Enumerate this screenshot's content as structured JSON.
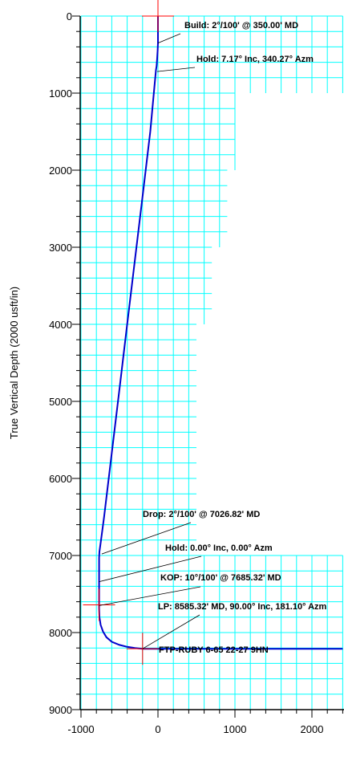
{
  "chart_data": {
    "type": "line",
    "title": "",
    "xlabel": "",
    "ylabel": "True Vertical Depth (2000 usft/in)",
    "xlim": [
      -1000,
      2400
    ],
    "ylim": [
      0,
      9000
    ],
    "y_inverted": true,
    "grid": true,
    "grid_color": "#00ffff",
    "line_color": "#0000cc",
    "marker_color": "#ff0000",
    "x_ticks": [
      -1000,
      0,
      1000,
      2000
    ],
    "x_tick_labels": [
      "-1000",
      "0",
      "1000",
      "2000"
    ],
    "y_ticks": [
      0,
      1000,
      2000,
      3000,
      4000,
      5000,
      6000,
      7000,
      8000,
      9000
    ],
    "y_tick_labels": [
      "0",
      "1000",
      "2000",
      "3000",
      "4000",
      "5000",
      "6000",
      "7000",
      "8000",
      "9000"
    ],
    "series": [
      {
        "x": [
          0,
          0,
          -4,
          -10,
          -18,
          -26,
          -100,
          -200,
          -300,
          -400,
          -500,
          -600,
          -700,
          -740,
          -760,
          -765,
          -765,
          -760,
          -745,
          -715,
          -670,
          -600,
          -500,
          -400,
          -300,
          -200,
          2400
        ],
        "y": [
          0,
          350,
          450,
          550,
          650,
          700,
          1500,
          2340,
          3170,
          4000,
          4840,
          5670,
          6500,
          6800,
          6950,
          7030,
          7685,
          7800,
          7900,
          7985,
          8060,
          8120,
          8160,
          8185,
          8200,
          8210,
          8210
        ]
      }
    ],
    "markers": [
      {
        "label": "surface-marker",
        "x": 0,
        "y": 0
      },
      {
        "label": "kop-marker",
        "x": -765,
        "y": 7640
      },
      {
        "label": "ftp-marker",
        "x": -200,
        "y": 8210
      }
    ],
    "annotations": [
      {
        "text": "Build: 2°/100' @ 350.00' MD",
        "x": 0,
        "y": 350
      },
      {
        "text": "Hold: 7.17° Inc, 340.27° Azm",
        "x": -10,
        "y": 720
      },
      {
        "text": "Drop: 2°/100' @ 7026.82' MD",
        "x": -730,
        "y": 6980
      },
      {
        "text": "Hold: 0.00° Inc, 0.00° Azm",
        "x": -765,
        "y": 7340
      },
      {
        "text": "KOP: 10°/100' @ 7685.32' MD",
        "x": -765,
        "y": 7650
      },
      {
        "text": "LP:  8585.32' MD, 90.00° Inc, 181.10° Azm",
        "x": -200,
        "y": 8210
      },
      {
        "text": "FTP-RUBY 6-65 22-27 9HN",
        "x": -200,
        "y": 8210
      }
    ]
  }
}
